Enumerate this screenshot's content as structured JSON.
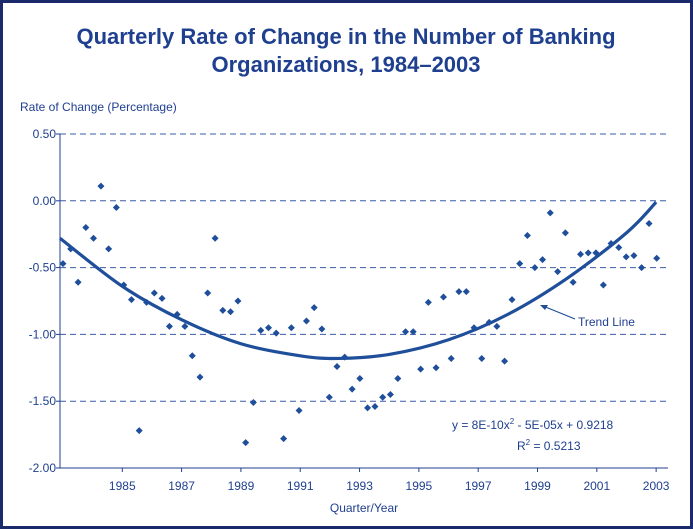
{
  "chart_data": {
    "type": "scatter",
    "title": [
      "Quarterly Rate of Change in the Number of Banking",
      "Organizations, 1984–2003"
    ],
    "y_label": "Rate of Change (Percentage)",
    "x_label": "Quarter/Year",
    "xlim": [
      1982.9,
      2003.4
    ],
    "xticks": [
      1985,
      1987,
      1989,
      1991,
      1993,
      1995,
      1997,
      1999,
      2001,
      2003
    ],
    "ylim": [
      -2,
      0.5
    ],
    "yticks": [
      {
        "value": -2,
        "label": "-2.00"
      },
      {
        "value": -1.5,
        "label": "-1.50"
      },
      {
        "value": -1,
        "label": "-1.00"
      },
      {
        "value": -0.5,
        "label": "-0.50"
      },
      {
        "value": 0,
        "label": "0.00"
      },
      {
        "value": 0.5,
        "label": "0.50"
      }
    ],
    "grid": true,
    "color": "#1f4e9a",
    "x": [
      1983.0,
      1983.26,
      1983.51,
      1983.77,
      1984.03,
      1984.28,
      1984.54,
      1984.8,
      1985.05,
      1985.31,
      1985.57,
      1985.82,
      1986.08,
      1986.34,
      1986.59,
      1986.85,
      1987.11,
      1987.36,
      1987.62,
      1987.88,
      1988.13,
      1988.39,
      1988.65,
      1988.9,
      1989.16,
      1989.42,
      1989.67,
      1989.93,
      1990.19,
      1990.44,
      1990.7,
      1990.96,
      1991.21,
      1991.47,
      1991.73,
      1991.98,
      1992.24,
      1992.5,
      1992.75,
      1993.01,
      1993.27,
      1993.52,
      1993.78,
      1994.04,
      1994.29,
      1994.55,
      1994.81,
      1995.06,
      1995.32,
      1995.58,
      1995.83,
      1996.09,
      1996.35,
      1996.6,
      1996.86,
      1997.12,
      1997.37,
      1997.63,
      1997.89,
      1998.14,
      1998.4,
      1998.66,
      1998.91,
      1999.17,
      1999.43,
      1999.68,
      1999.94,
      2000.2,
      2000.45,
      2000.71,
      2000.97,
      2001.22,
      2001.48,
      2001.74,
      2001.99,
      2002.25,
      2002.51,
      2002.76,
      2003.02
    ],
    "values": [
      -0.47,
      -0.36,
      -0.61,
      -0.2,
      -0.28,
      0.11,
      -0.36,
      -0.05,
      -0.63,
      -0.74,
      -1.72,
      -0.76,
      -0.69,
      -0.73,
      -0.94,
      -0.85,
      -0.94,
      -1.16,
      -1.32,
      -0.69,
      -0.28,
      -0.82,
      -0.83,
      -0.75,
      -1.81,
      -1.51,
      -0.97,
      -0.95,
      -0.99,
      -1.78,
      -0.95,
      -1.57,
      -0.9,
      -0.8,
      -0.96,
      -1.47,
      -1.24,
      -1.17,
      -1.41,
      -1.33,
      -1.55,
      -1.54,
      -1.47,
      -1.45,
      -1.33,
      -0.98,
      -0.98,
      -1.26,
      -0.76,
      -1.25,
      -0.72,
      -1.18,
      -0.68,
      -0.68,
      -0.95,
      -1.18,
      -0.91,
      -0.94,
      -1.2,
      -0.74,
      -0.47,
      -0.26,
      -0.5,
      -0.44,
      -0.09,
      -0.53,
      -0.24,
      -0.61,
      -0.4,
      -0.39,
      -0.39,
      -0.63,
      -0.32,
      -0.35,
      -0.42,
      -0.41,
      -0.5,
      -0.17,
      -0.43
    ],
    "trend": {
      "name": "Trend Line",
      "color": "#1f4e9a",
      "x": [
        1982.9,
        1985,
        1987,
        1989,
        1991,
        1992.3,
        1994,
        1996,
        1998,
        2000,
        2002,
        2003
      ],
      "values": [
        -0.28,
        -0.64,
        -0.89,
        -1.07,
        -1.16,
        -1.18,
        -1.15,
        -1.04,
        -0.85,
        -0.58,
        -0.24,
        -0.01
      ]
    },
    "equation": [
      "y = 8E-10x",
      "2",
      " - 5E-05x + 0.9218"
    ],
    "r_squared": [
      "R",
      "2",
      " = 0.5213"
    ]
  }
}
